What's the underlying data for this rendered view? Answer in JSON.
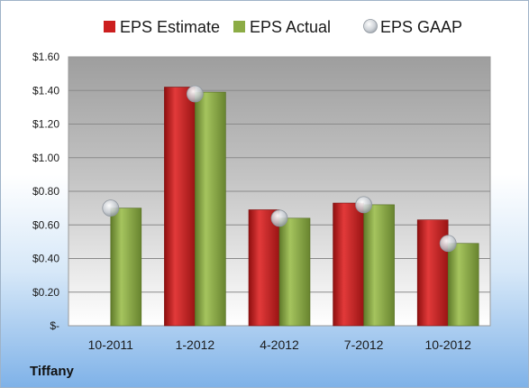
{
  "company": "Tiffany",
  "colors": {
    "estimate": "#cc1f1f",
    "actual": "#8cac45",
    "gaap": "#b8bec6"
  },
  "chart_data": {
    "type": "bar",
    "categories": [
      "10-2011",
      "1-2012",
      "4-2012",
      "7-2012",
      "10-2012"
    ],
    "series": [
      {
        "name": "EPS Estimate",
        "kind": "bar",
        "values": [
          null,
          1.42,
          0.69,
          0.73,
          0.63
        ]
      },
      {
        "name": "EPS Actual",
        "kind": "bar",
        "values": [
          0.7,
          1.39,
          0.64,
          0.72,
          0.49
        ]
      },
      {
        "name": "EPS GAAP",
        "kind": "marker",
        "values": [
          0.7,
          1.38,
          0.64,
          0.72,
          0.49
        ]
      }
    ],
    "yticks": [
      "$-",
      "$0.20",
      "$0.40",
      "$0.60",
      "$0.80",
      "$1.00",
      "$1.20",
      "$1.40",
      "$1.60"
    ],
    "ylim": [
      0,
      1.6
    ],
    "grid": true,
    "legend_position": "top"
  }
}
